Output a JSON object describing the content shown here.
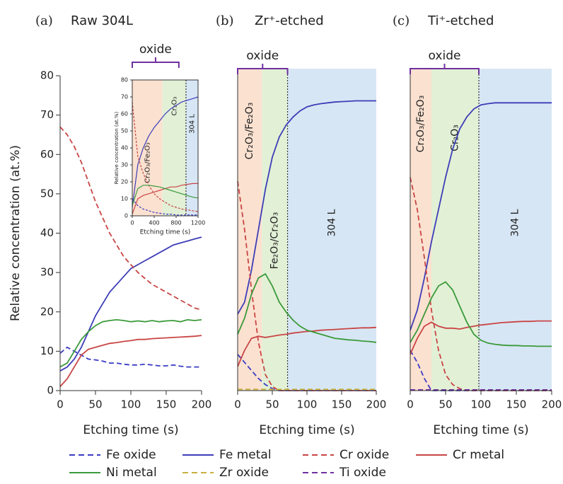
{
  "chart_data": [
    {
      "type": "line",
      "panel_label": "(a)",
      "title": "Raw 304L",
      "ylabel": "Relative concentration (at.%)",
      "xlabel": "Etching time (s)",
      "xlim": [
        0,
        200
      ],
      "xticks": [
        0,
        50,
        100,
        150,
        200
      ],
      "ylim": [
        0,
        80
      ],
      "yticks": [
        0,
        10,
        20,
        30,
        40,
        50,
        60,
        70,
        80
      ],
      "x": [
        0,
        10,
        20,
        30,
        40,
        50,
        60,
        70,
        80,
        90,
        100,
        110,
        120,
        130,
        140,
        150,
        160,
        170,
        180,
        190,
        200
      ],
      "series": [
        {
          "name": "Fe oxide",
          "color": "#3b3bc4",
          "dash": true,
          "values": [
            9.5,
            11,
            10,
            9,
            8,
            7.8,
            7.5,
            7,
            7,
            6.7,
            6.5,
            6.5,
            6.7,
            6.5,
            6.3,
            6.3,
            6.5,
            6.2,
            6,
            6,
            6
          ]
        },
        {
          "name": "Fe metal",
          "color": "#3d3db8",
          "dash": false,
          "values": [
            5,
            6,
            8,
            11,
            15,
            19,
            22,
            25,
            27,
            29,
            31,
            32,
            33,
            34,
            35,
            36,
            37,
            37.5,
            38,
            38.5,
            39
          ]
        },
        {
          "name": "Cr oxide",
          "color": "#c94545",
          "dash": true,
          "values": [
            67,
            65,
            62,
            58,
            53,
            48,
            44,
            40,
            37,
            34,
            32,
            30,
            28.5,
            27,
            26,
            25,
            24,
            23,
            22,
            21,
            20.5
          ]
        },
        {
          "name": "Cr metal",
          "color": "#c94545",
          "dash": false,
          "values": [
            1,
            3,
            6,
            9,
            10.5,
            11,
            11.5,
            12,
            12.2,
            12.5,
            12.7,
            13,
            13,
            13.2,
            13.3,
            13.4,
            13.5,
            13.6,
            13.7,
            13.8,
            14
          ]
        },
        {
          "name": "Ni metal",
          "color": "#3a9a3a",
          "dash": false,
          "values": [
            6,
            7,
            10,
            13,
            15,
            16.5,
            17.5,
            17.8,
            18,
            17.8,
            17.5,
            17.7,
            17.5,
            17.8,
            17.5,
            17.7,
            17.8,
            17.5,
            18,
            17.8,
            18
          ]
        }
      ]
    },
    {
      "type": "line",
      "panel_label": "(b)",
      "title": "Zr⁺-etched",
      "xlabel": "Etching time (s)",
      "xlim": [
        0,
        200
      ],
      "xticks": [
        0,
        50,
        100,
        150,
        200
      ],
      "ylim": [
        0,
        80
      ],
      "x": [
        0,
        10,
        20,
        30,
        40,
        50,
        60,
        70,
        80,
        90,
        100,
        110,
        120,
        130,
        140,
        150,
        160,
        170,
        180,
        190,
        200
      ],
      "regions": [
        {
          "range": [
            0,
            35
          ],
          "color": "#fbe1d0",
          "label": "Cr₂O₃/Fe₂O₃",
          "label_color": "#333"
        },
        {
          "range": [
            35,
            72
          ],
          "color": "#e2f0d6",
          "label": "Fe₂O₃/Cr₂O₃",
          "label_color": "#333"
        },
        {
          "range": [
            72,
            200
          ],
          "color": "#d7e6f4",
          "label": "304 L",
          "label_color": "#888"
        }
      ],
      "boundary": 72,
      "bracket": {
        "label": "oxide",
        "range": [
          0,
          72
        ]
      },
      "series": [
        {
          "name": "Fe oxide",
          "color": "#3b3bc4",
          "dash": true,
          "values": [
            9,
            7,
            5,
            3,
            1.5,
            0.5,
            0,
            0,
            0,
            0,
            0,
            0,
            0,
            0,
            0,
            0,
            0,
            0,
            0,
            0,
            0
          ]
        },
        {
          "name": "Fe metal",
          "color": "#3d3db8",
          "dash": false,
          "values": [
            19,
            22,
            30,
            40,
            50,
            58,
            63,
            66,
            68,
            69.5,
            70.5,
            71,
            71.3,
            71.5,
            71.7,
            71.8,
            71.9,
            72,
            72,
            72,
            72
          ]
        },
        {
          "name": "Cr oxide",
          "color": "#c94545",
          "dash": true,
          "values": [
            52,
            40,
            25,
            12,
            4,
            1,
            0,
            0,
            0,
            0,
            0,
            0,
            0,
            0,
            0,
            0,
            0,
            0,
            0,
            0,
            0
          ]
        },
        {
          "name": "Cr metal",
          "color": "#c94545",
          "dash": false,
          "values": [
            6,
            10,
            13,
            13.5,
            13.2,
            13.5,
            13.8,
            14,
            14.3,
            14.5,
            14.7,
            14.8,
            15,
            15.1,
            15.2,
            15.3,
            15.4,
            15.5,
            15.6,
            15.6,
            15.7
          ]
        },
        {
          "name": "Ni metal",
          "color": "#3a9a3a",
          "dash": false,
          "values": [
            14,
            18,
            24,
            28,
            29,
            26,
            22,
            19.5,
            17.5,
            16,
            15,
            14.5,
            14,
            13.5,
            13,
            12.8,
            12.6,
            12.5,
            12.3,
            12.2,
            12
          ]
        },
        {
          "name": "Zr oxide",
          "color": "#c9b040",
          "dash": true,
          "values": [
            0.3,
            0.3,
            0.3,
            0.3,
            0.3,
            0.3,
            0.3,
            0.3,
            0.3,
            0.3,
            0.3,
            0.3,
            0.3,
            0.3,
            0.3,
            0.3,
            0.3,
            0.3,
            0.3,
            0.3,
            0.3
          ]
        }
      ]
    },
    {
      "type": "line",
      "panel_label": "(c)",
      "title": "Ti⁺-etched",
      "xlabel": "Etching time (s)",
      "xlim": [
        0,
        200
      ],
      "xticks": [
        0,
        50,
        100,
        150,
        200
      ],
      "ylim": [
        0,
        80
      ],
      "x": [
        0,
        10,
        20,
        30,
        40,
        50,
        60,
        70,
        80,
        90,
        100,
        110,
        120,
        130,
        140,
        150,
        160,
        170,
        180,
        190,
        200
      ],
      "regions": [
        {
          "range": [
            0,
            30
          ],
          "color": "#fbe1d0",
          "label": "Cr₂O₃/Fe₂O₃",
          "label_color": "#333"
        },
        {
          "range": [
            30,
            97
          ],
          "color": "#e2f0d6",
          "label": "Cr₂O₃",
          "label_color": "#333"
        },
        {
          "range": [
            97,
            200
          ],
          "color": "#d7e6f4",
          "label": "304 L",
          "label_color": "#888"
        }
      ],
      "boundary": 97,
      "bracket": {
        "label": "oxide",
        "range": [
          0,
          97
        ]
      },
      "series": [
        {
          "name": "Fe oxide",
          "color": "#3b3bc4",
          "dash": true,
          "values": [
            10,
            7,
            3,
            0,
            0,
            0,
            0,
            0,
            0,
            0,
            0,
            0,
            0,
            0,
            0,
            0,
            0,
            0,
            0,
            0,
            0
          ]
        },
        {
          "name": "Fe metal",
          "color": "#3d3db8",
          "dash": false,
          "values": [
            15,
            20,
            28,
            37,
            45,
            53,
            60,
            65,
            68,
            70,
            71,
            71.3,
            71.5,
            71.5,
            71.5,
            71.5,
            71.5,
            71.5,
            71.5,
            71.5,
            71.5
          ]
        },
        {
          "name": "Cr oxide",
          "color": "#c94545",
          "dash": true,
          "values": [
            53,
            45,
            33,
            20,
            10,
            4,
            1.5,
            0.5,
            0,
            0,
            0,
            0,
            0,
            0,
            0,
            0,
            0,
            0,
            0,
            0,
            0
          ]
        },
        {
          "name": "Cr metal",
          "color": "#c94545",
          "dash": false,
          "values": [
            9,
            13,
            16,
            17,
            16,
            15.5,
            15.5,
            15.3,
            15.7,
            16,
            16.3,
            16.5,
            16.7,
            16.9,
            17,
            17.1,
            17.2,
            17.2,
            17.3,
            17.3,
            17.3
          ]
        },
        {
          "name": "Ni metal",
          "color": "#3a9a3a",
          "dash": false,
          "values": [
            12,
            15,
            19,
            23,
            26,
            27,
            25,
            21,
            17,
            14,
            12.5,
            11.8,
            11.5,
            11.3,
            11.2,
            11.2,
            11.1,
            11.1,
            11,
            11,
            11
          ]
        },
        {
          "name": "Ti oxide",
          "color": "#7030a0",
          "dash": true,
          "values": [
            0.2,
            0.2,
            0.2,
            0.2,
            0.2,
            0.2,
            0.2,
            0.2,
            0.2,
            0.2,
            0.2,
            0.2,
            0.2,
            0.2,
            0.2,
            0.2,
            0.2,
            0.2,
            0.2,
            0.2,
            0.2
          ]
        }
      ]
    },
    {
      "type": "line",
      "ylabel": "Relative concentration (at.%)",
      "xlabel": "Etching time (s)",
      "xlim": [
        0,
        1200
      ],
      "xticks": [
        0,
        400,
        800,
        1200
      ],
      "ylim": [
        0,
        80
      ],
      "yticks": [
        0,
        10,
        20,
        30,
        40,
        50,
        60,
        70,
        80
      ],
      "x": [
        0,
        100,
        200,
        300,
        400,
        500,
        600,
        700,
        800,
        900,
        1000,
        1100,
        1200
      ],
      "regions": [
        {
          "range": [
            0,
            550
          ],
          "color": "#fbe1d0",
          "label": "Cr₂O₃/Fe₂O₃",
          "label_color": "#333"
        },
        {
          "range": [
            550,
            980
          ],
          "color": "#e2f0d6",
          "label": "Cr₂O₃",
          "label_color": "#333"
        },
        {
          "range": [
            980,
            1200
          ],
          "color": "#d7e6f4",
          "label": "304 L",
          "label_color": "#888"
        }
      ],
      "boundary": 980,
      "bracket": {
        "label": "oxide",
        "range": [
          0,
          850
        ]
      },
      "series": [
        {
          "color": "#3b3bc4",
          "dash": true,
          "values": [
            10,
            6,
            4,
            3,
            2,
            1.5,
            1,
            1,
            0.5,
            0.5,
            0.5,
            0.5,
            0.5
          ]
        },
        {
          "color": "#3d3db8",
          "dash": false,
          "values": [
            5,
            30,
            40,
            47,
            52,
            56,
            60,
            63,
            65,
            67,
            68,
            69,
            70
          ]
        },
        {
          "color": "#c94545",
          "dash": true,
          "values": [
            67,
            35,
            25,
            18,
            13,
            10,
            8,
            6,
            5,
            4,
            3.5,
            3,
            2.5
          ]
        },
        {
          "color": "#c94545",
          "dash": false,
          "values": [
            1,
            10,
            12,
            13,
            14,
            15,
            16,
            17,
            17,
            18,
            18.5,
            19,
            19
          ]
        },
        {
          "color": "#3a9a3a",
          "dash": false,
          "values": [
            6,
            16,
            18,
            18,
            17.5,
            17,
            16,
            15,
            14,
            13,
            12,
            11,
            10.5
          ]
        }
      ]
    }
  ]
}
